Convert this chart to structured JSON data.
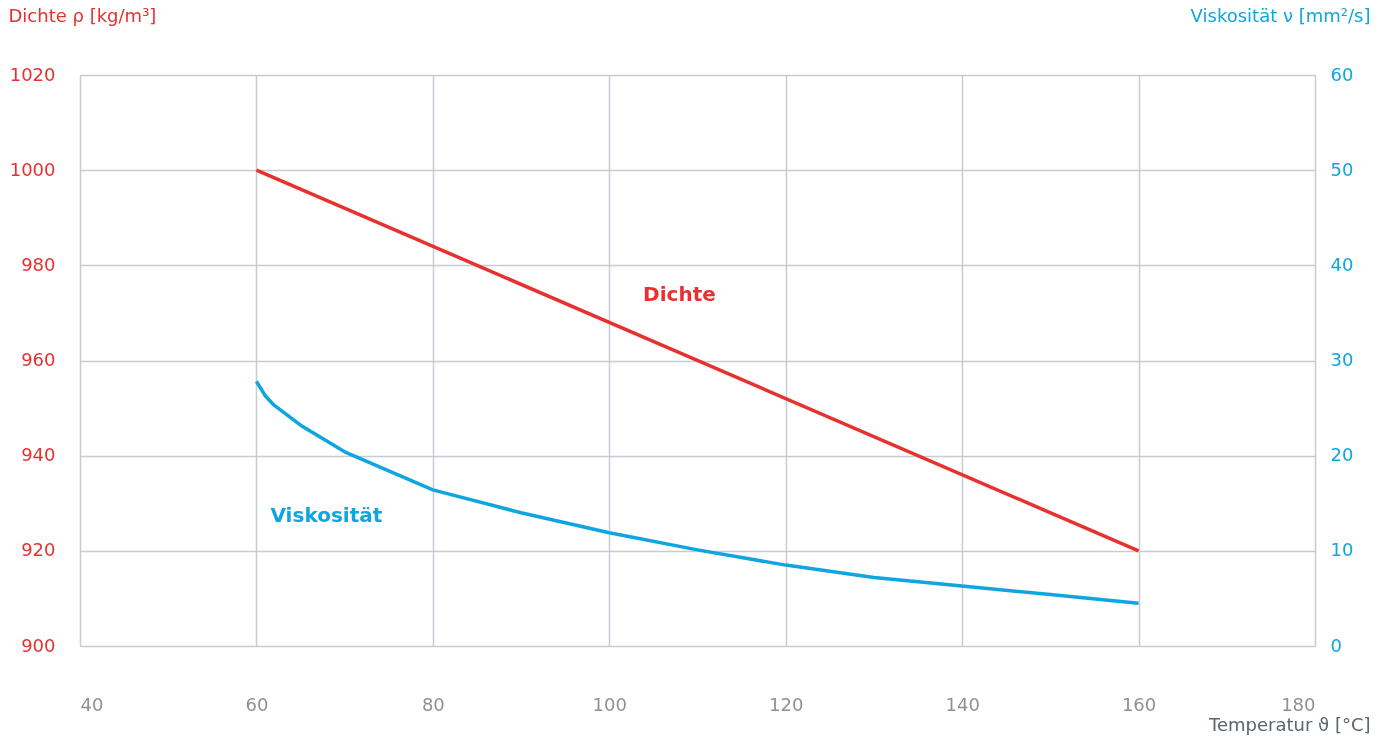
{
  "chart_data": {
    "type": "line",
    "ylabel": "Dichte ρ [kg/m³]",
    "y2label": "Viskosität ν [mm²/s]",
    "xlabel": "Temperatur ϑ [°C]",
    "xlim": [
      40,
      180
    ],
    "xticks": [
      40,
      60,
      80,
      100,
      120,
      140,
      160,
      180
    ],
    "ylim": [
      900,
      1020
    ],
    "yticks": [
      900,
      920,
      940,
      960,
      980,
      1000,
      1020
    ],
    "y2lim": [
      0,
      60
    ],
    "y2ticks": [
      0,
      10,
      20,
      30,
      40,
      50,
      60
    ],
    "grid": true,
    "marker": "none",
    "line_style": "solid",
    "series": [
      {
        "name": "Dichte",
        "color": "#e8312f",
        "x": [
          60,
          160
        ],
        "values": [
          1000,
          920
        ]
      },
      {
        "name": "Viskosität",
        "color": "#0ea5e0",
        "axis": "y2",
        "x": [
          60,
          61,
          62,
          65,
          70,
          80,
          90,
          100,
          110,
          120,
          130,
          140,
          150,
          160
        ],
        "values": [
          27.8,
          26.3,
          25.3,
          23.2,
          20.4,
          16.4,
          14.0,
          11.9,
          10.1,
          8.5,
          7.2,
          6.3,
          5.4,
          4.5
        ]
      }
    ]
  }
}
